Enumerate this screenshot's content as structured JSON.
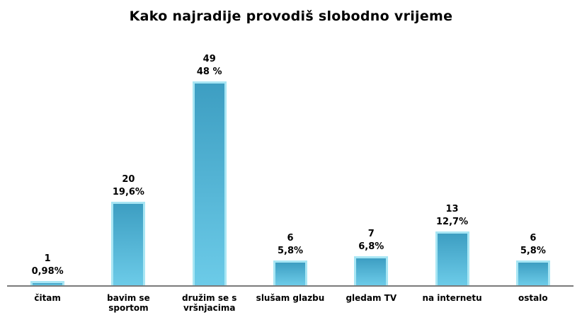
{
  "chart_data": {
    "type": "bar",
    "title": "Kako najradije provodiš slobodno vrijeme",
    "categories": [
      "čitam",
      "bavim se sportom",
      "družim se s vršnjacima",
      "slušam glazbu",
      "gledam TV",
      "na internetu",
      "ostalo"
    ],
    "values": [
      1,
      20,
      49,
      6,
      7,
      13,
      6
    ],
    "percent_values": [
      0.98,
      19.6,
      48,
      5.8,
      6.8,
      12.7,
      5.8
    ],
    "percent_labels": [
      "0,98%",
      "19,6%",
      "48 %",
      "5,8%",
      "6,8%",
      "12,7%",
      "5,8%"
    ],
    "color": "#48aed0"
  }
}
